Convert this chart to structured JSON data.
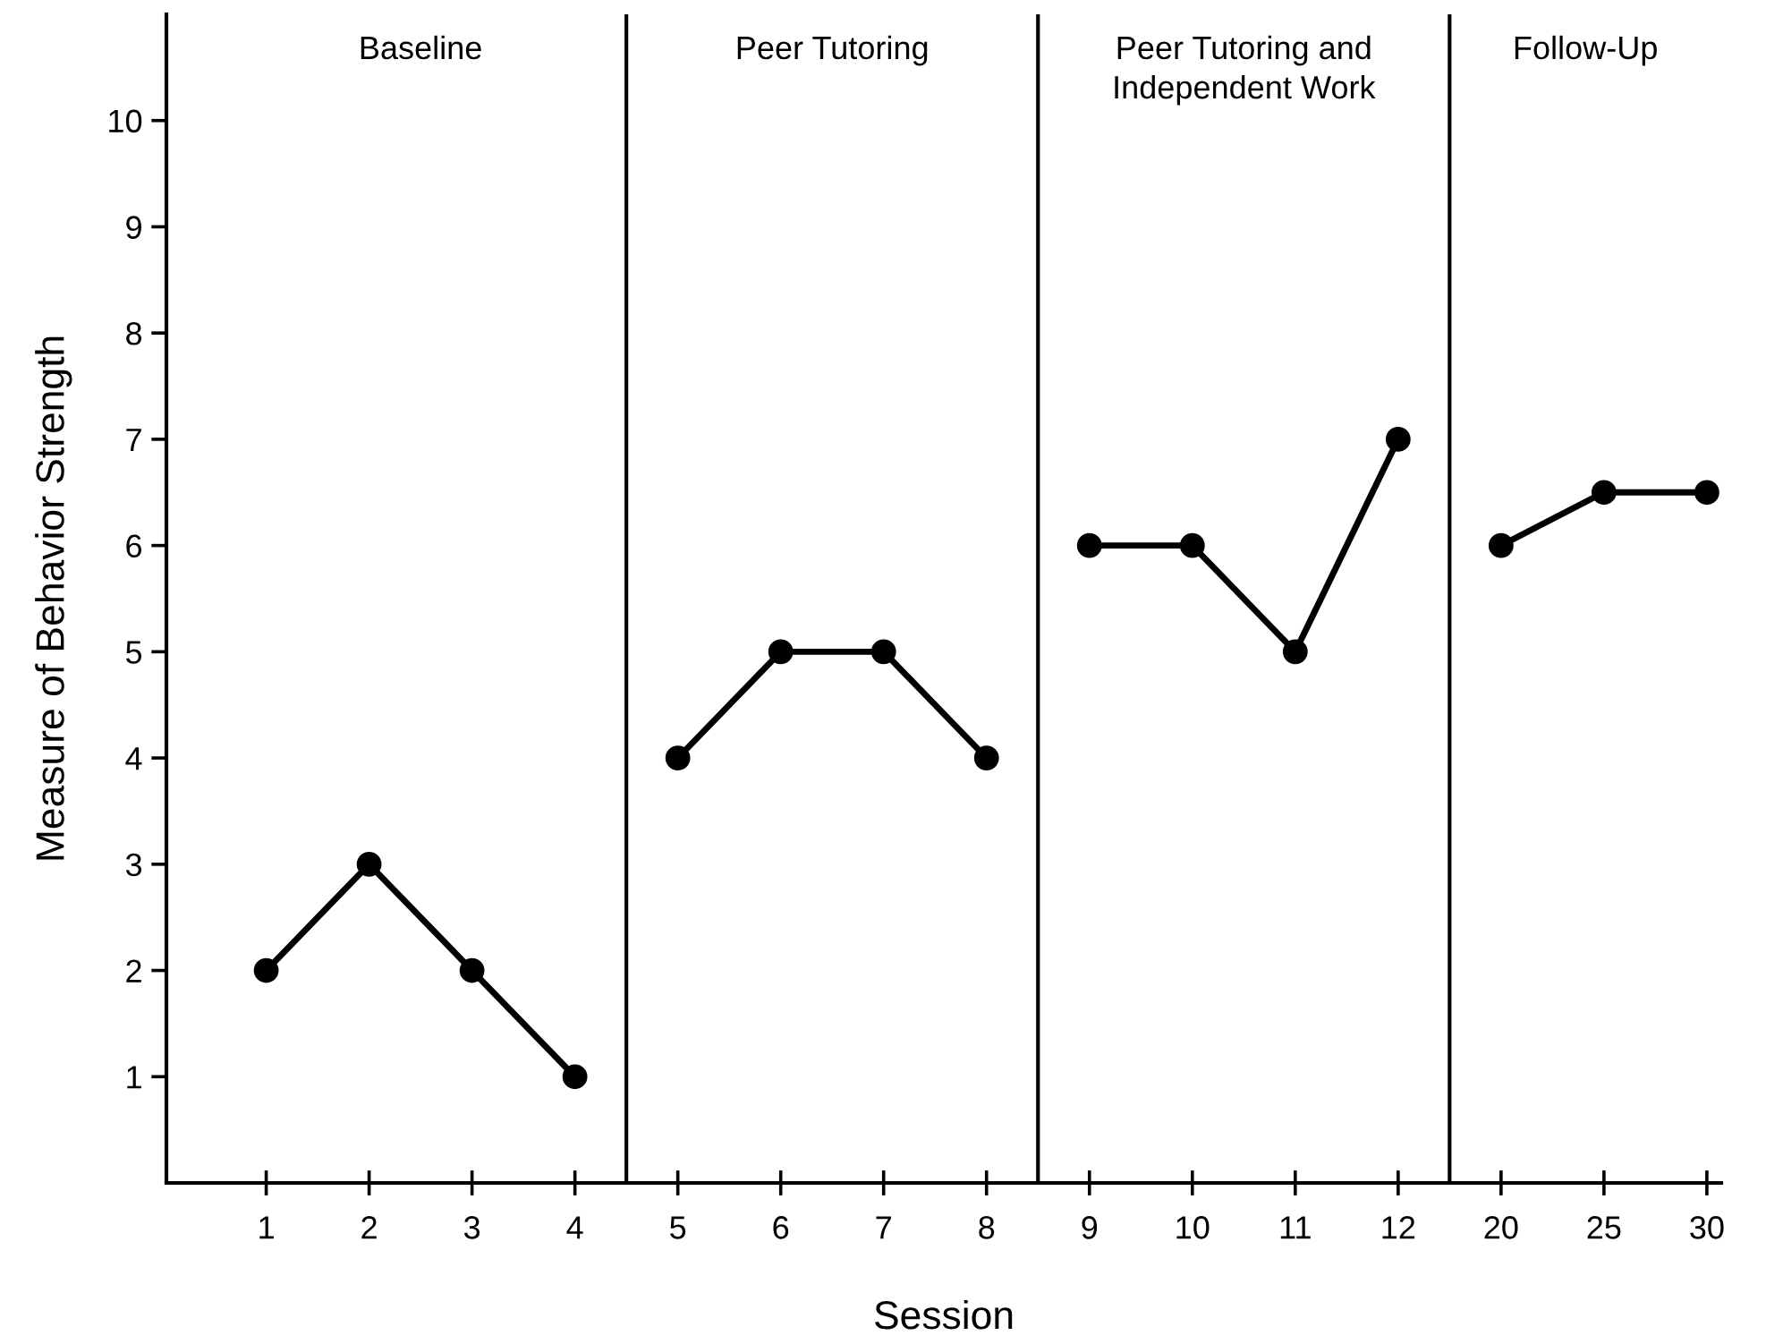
{
  "chart_data": {
    "type": "line",
    "xlabel": "Session",
    "ylabel": "Measure of Behavior Strength",
    "categories": [
      "1",
      "2",
      "3",
      "4",
      "5",
      "6",
      "7",
      "8",
      "9",
      "10",
      "11",
      "12",
      "20",
      "25",
      "30"
    ],
    "series": [
      {
        "color": "#000000",
        "values": [
          2,
          3,
          2,
          1,
          null,
          null,
          null,
          null,
          null,
          null,
          null,
          null,
          null,
          null,
          null
        ]
      },
      {
        "color": "#000000",
        "values": [
          null,
          null,
          null,
          null,
          4,
          5,
          5,
          4,
          null,
          null,
          null,
          null,
          null,
          null,
          null
        ]
      },
      {
        "color": "#000000",
        "values": [
          null,
          null,
          null,
          null,
          null,
          null,
          null,
          null,
          6,
          6,
          5,
          7,
          null,
          null,
          null
        ]
      },
      {
        "color": "#000000",
        "values": [
          null,
          null,
          null,
          null,
          null,
          null,
          null,
          null,
          null,
          null,
          null,
          null,
          6,
          6.5,
          6.5
        ]
      }
    ],
    "annotations": [
      "Baseline",
      "Peer Tutoring",
      "Peer Tutoring and\nIndependent Work",
      "Follow-Up"
    ],
    "ylim": [
      0,
      11
    ],
    "yticks": [
      1,
      2,
      3,
      4,
      5,
      6,
      7,
      8,
      9,
      10
    ],
    "marker": "circle",
    "line_style": "solid",
    "grid": false,
    "legend": false
  }
}
